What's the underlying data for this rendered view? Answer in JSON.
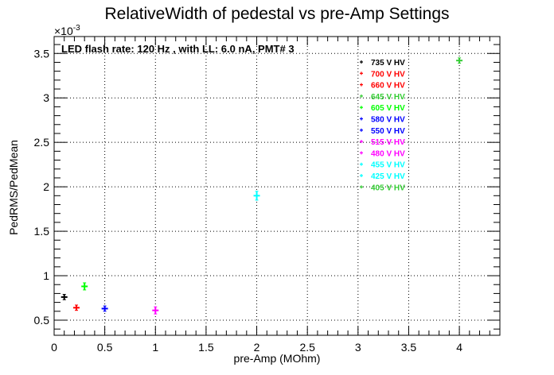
{
  "chart_data": {
    "type": "scatter",
    "title": "RelativeWidth of pedestal vs pre-Amp Settings",
    "xlabel": "pre-Amp (MOhm)",
    "ylabel": "PedRMS/PedMean",
    "y_exponent_label": "×10",
    "y_exponent_power": "-3",
    "annotation": "LED flash rate: 120 Hz , with LL: 6.0 nA, PMT# 3",
    "xlim": [
      0,
      4.4
    ],
    "ylim": [
      0.33,
      3.69
    ],
    "grid": true,
    "grid_style": "dotted",
    "legend_position": "top-right",
    "x_ticks": [
      "0",
      "0.5",
      "1",
      "1.5",
      "2",
      "2.5",
      "3",
      "3.5",
      "4"
    ],
    "y_ticks": [
      "0.5",
      "1",
      "1.5",
      "2",
      "2.5",
      "3",
      "3.5"
    ],
    "series": [
      {
        "name": "735 V HV",
        "color": "#000000",
        "x": [
          0.1
        ],
        "y": [
          0.76
        ],
        "yerr": [
          0.03
        ]
      },
      {
        "name": "700 V HV",
        "color": "#ff0000",
        "x": [],
        "y": [],
        "yerr": []
      },
      {
        "name": "660 V HV",
        "color": "#ff0000",
        "x": [
          0.22
        ],
        "y": [
          0.64
        ],
        "yerr": [
          0.03
        ]
      },
      {
        "name": "645 V HV",
        "color": "#33cc33",
        "x": [],
        "y": [],
        "yerr": []
      },
      {
        "name": "605 V HV",
        "color": "#00ff00",
        "x": [
          0.3
        ],
        "y": [
          0.88
        ],
        "yerr": [
          0.04
        ]
      },
      {
        "name": "580 V HV",
        "color": "#0000ff",
        "x": [],
        "y": [],
        "yerr": []
      },
      {
        "name": "550 V HV",
        "color": "#0000ff",
        "x": [
          0.5
        ],
        "y": [
          0.63
        ],
        "yerr": [
          0.03
        ]
      },
      {
        "name": "515 V HV",
        "color": "#ff00ff",
        "x": [],
        "y": [],
        "yerr": []
      },
      {
        "name": "480 V HV",
        "color": "#ff00ff",
        "x": [
          1.0
        ],
        "y": [
          0.61
        ],
        "yerr": [
          0.04
        ]
      },
      {
        "name": "455 V HV",
        "color": "#00ffff",
        "x": [],
        "y": [],
        "yerr": []
      },
      {
        "name": "425 V HV",
        "color": "#00ffff",
        "x": [
          2.0
        ],
        "y": [
          1.9
        ],
        "yerr": [
          0.05
        ]
      },
      {
        "name": "405 V HV",
        "color": "#33cc33",
        "x": [
          4.0
        ],
        "y": [
          3.42
        ],
        "yerr": [
          0.03
        ]
      }
    ]
  }
}
